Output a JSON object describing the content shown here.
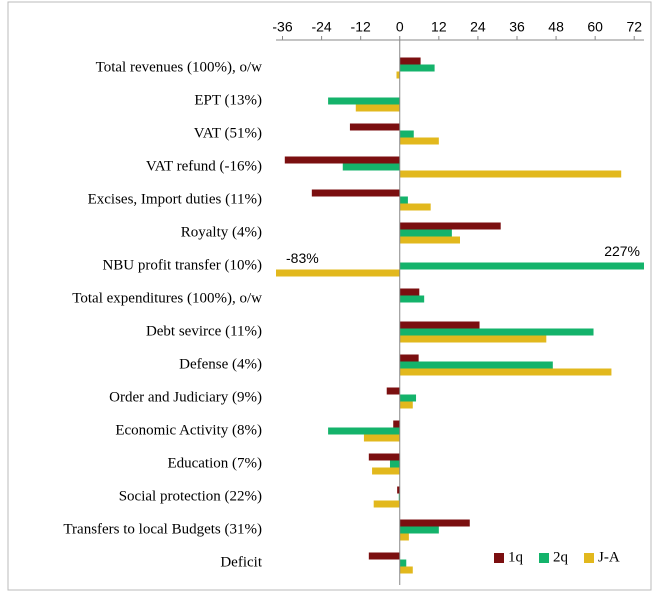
{
  "chart_data": {
    "type": "bar",
    "orientation": "horizontal",
    "categories": [
      "Total revenues (100%), o/w",
      "EPT (13%)",
      "VAT (51%)",
      "VAT refund (-16%)",
      "Excises, Import duties (11%)",
      "Royalty (4%)",
      "NBU profit transfer (10%)",
      "Total expenditures (100%), o/w",
      "Debt sevirce (11%)",
      "Defense (4%)",
      "Order and Judiciary (9%)",
      "Economic Activity (8%)",
      "Education (7%)",
      "Social protection (22%)",
      "Transfers to local Budgets (31%)",
      "Deficit"
    ],
    "series": [
      {
        "name": "1q",
        "color": "#7b0f10",
        "values": [
          6.4,
          null,
          -15.3,
          -35.3,
          -27,
          31,
          null,
          6,
          24.5,
          5.8,
          -4,
          -2,
          -9.5,
          -0.8,
          21.5,
          -9.5
        ]
      },
      {
        "name": "2q",
        "color": "#14b36b",
        "values": [
          10.7,
          -22,
          4.3,
          -17.5,
          2.5,
          16,
          227,
          7.5,
          59.5,
          47,
          5,
          -22,
          -3,
          -0.3,
          12,
          2
        ],
        "value_labels": [
          null,
          null,
          null,
          null,
          null,
          null,
          "227%",
          null,
          null,
          null,
          null,
          null,
          null,
          null,
          null,
          null
        ]
      },
      {
        "name": "J-A",
        "color": "#e2b81d",
        "values": [
          -1,
          -13.5,
          12,
          68,
          9.5,
          18.5,
          -83,
          null,
          45,
          65,
          4,
          -11,
          -8.5,
          -8,
          2.8,
          4
        ],
        "value_labels": [
          null,
          null,
          null,
          null,
          null,
          null,
          "-83%",
          null,
          null,
          null,
          null,
          null,
          null,
          null,
          null,
          null
        ]
      }
    ],
    "xlim": [
      -38,
      75
    ],
    "xticks": [
      -36,
      -24,
      -12,
      0,
      12,
      24,
      36,
      48,
      60,
      72
    ],
    "legend": "lower right"
  }
}
